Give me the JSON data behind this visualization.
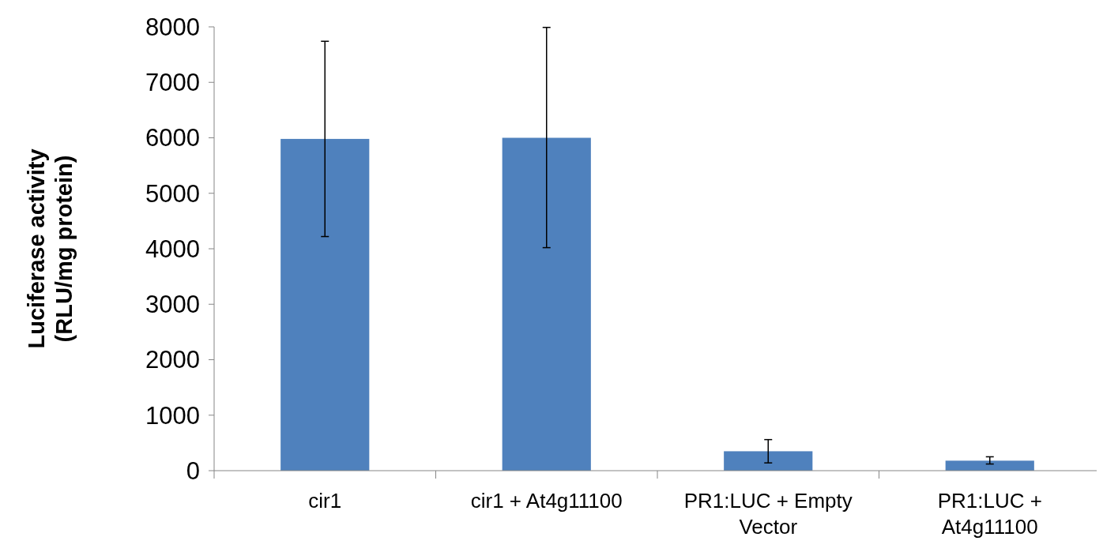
{
  "chart_data": {
    "type": "bar",
    "ylabel": "Luciferase activity (RLU/mg protein)",
    "categories": [
      "cir1",
      "cir1 + At4g11100",
      "PR1:LUC + Empty Vector",
      "PR1:LUC + At4g11100"
    ],
    "values": [
      5980,
      6000,
      350,
      180
    ],
    "errors": [
      [
        4220,
        7740
      ],
      [
        4020,
        7990
      ],
      [
        140,
        560
      ],
      [
        120,
        250
      ]
    ],
    "color": "#4f81bd",
    "ylim": [
      0,
      8000
    ],
    "yticks": [
      0,
      1000,
      2000,
      3000,
      4000,
      5000,
      6000,
      7000,
      8000
    ],
    "grid": false
  }
}
